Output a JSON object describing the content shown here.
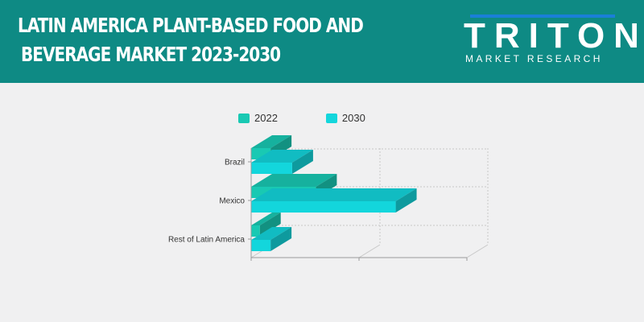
{
  "header": {
    "title_line1": "LATIN AMERICA PLANT-BASED FOOD AND",
    "title_line2": "BEVERAGE MARKET 2023-2030",
    "brand_word": "TRITON",
    "brand_sub": "MARKET RESEARCH",
    "brand_accent": "#1a7fd8",
    "background": "#0e8a84"
  },
  "chart_data": {
    "type": "bar",
    "orientation": "horizontal",
    "style": "3d",
    "categories": [
      "Brazil",
      "Mexico",
      "Rest of Latin America"
    ],
    "series": [
      {
        "name": "2022",
        "values": [
          9,
          30,
          4
        ],
        "color": "#19c9b3"
      },
      {
        "name": "2030",
        "values": [
          19,
          67,
          9
        ],
        "color": "#13d6dc"
      }
    ],
    "xlim": [
      0,
      100
    ],
    "grid": true,
    "legend_position": "top",
    "title": "",
    "xlabel": "",
    "ylabel": ""
  }
}
